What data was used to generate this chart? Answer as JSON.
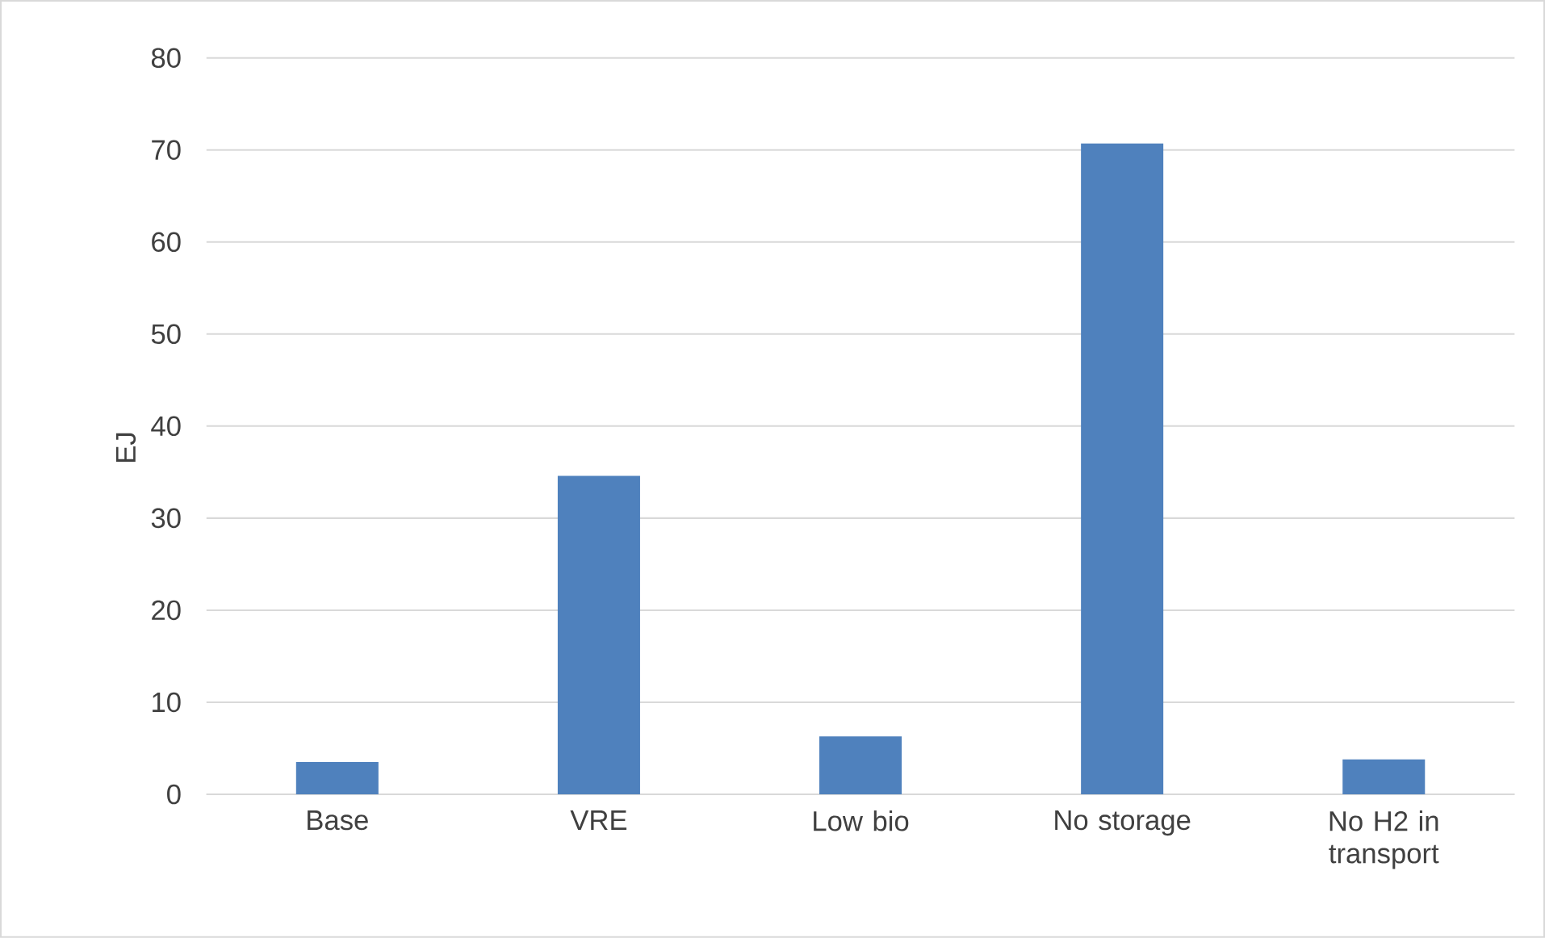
{
  "chart_data": {
    "type": "bar",
    "ylabel": "EJ",
    "categories": [
      "Base",
      "VRE",
      "Low bio",
      "No storage",
      "No H2 in transport"
    ],
    "values": [
      3.5,
      34.6,
      6.3,
      70.7,
      3.8
    ],
    "color": "#4f81bd",
    "ylim": [
      0,
      80
    ],
    "yticks": [
      0,
      10,
      20,
      30,
      40,
      50,
      60,
      70,
      80
    ],
    "grid": "y"
  }
}
